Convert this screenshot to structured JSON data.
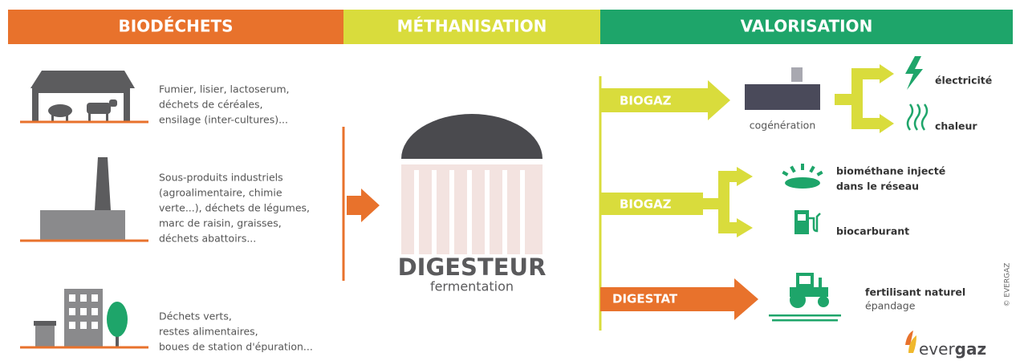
{
  "header": {
    "sections": [
      "BIODÉCHETS",
      "MÉTHANISATION",
      "VALORISATION"
    ]
  },
  "sources": [
    {
      "lines": [
        "Fumier, lisier, lactoserum,",
        "déchets de céréales,",
        "ensilage (inter-cultures)..."
      ]
    },
    {
      "lines": [
        "Sous-produits industriels",
        "(agroalimentaire, chimie",
        "verte...), déchets de légumes,",
        "marc de raisin, graisses,",
        "déchets abattoirs..."
      ]
    },
    {
      "lines": [
        "Déchets verts,",
        "restes alimentaires,",
        "boues de station d'épuration..."
      ]
    }
  ],
  "digester": {
    "title": "DIGESTEUR",
    "subtitle": "fermentation"
  },
  "outputs": [
    {
      "label": "BIOGAZ",
      "unit": "cogénération",
      "products": [
        {
          "lines": [
            "électricité"
          ]
        },
        {
          "lines": [
            "chaleur"
          ]
        }
      ]
    },
    {
      "label": "BIOGAZ",
      "products": [
        {
          "lines": [
            "biométhane injecté",
            "dans le réseau"
          ]
        },
        {
          "lines": [
            "biocarburant"
          ]
        }
      ]
    },
    {
      "label": "DIGESTAT",
      "products": [
        {
          "lines": [
            "fertilisant naturel",
            "épandage"
          ]
        }
      ]
    }
  ],
  "credit": "© EVERGAZ",
  "logo": [
    "ever",
    "gaz"
  ]
}
